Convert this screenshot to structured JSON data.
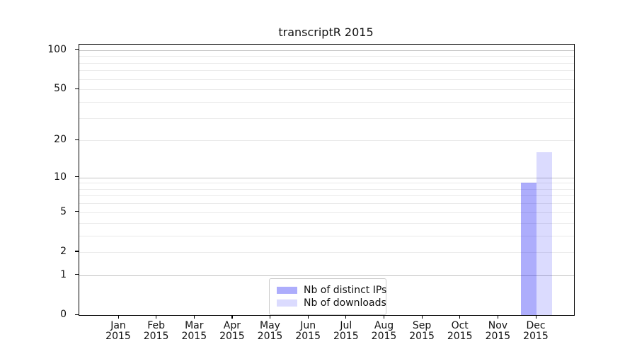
{
  "chart_data": {
    "type": "bar",
    "title": "transcriptR 2015",
    "x_categories": [
      "Jan",
      "Feb",
      "Mar",
      "Apr",
      "May",
      "Jun",
      "Jul",
      "Aug",
      "Sep",
      "Oct",
      "Nov",
      "Dec"
    ],
    "x_year": "2015",
    "series": [
      {
        "name": "Nb of distinct IPs",
        "color": "rgba(15, 15, 245, 0.34)",
        "values": [
          0,
          0,
          0,
          0,
          0,
          0,
          0,
          0,
          0,
          0,
          0,
          9
        ]
      },
      {
        "name": "Nb of downloads",
        "color": "rgba(15, 15, 245, 0.15)",
        "values": [
          0,
          0,
          0,
          0,
          0,
          0,
          0,
          0,
          0,
          0,
          0,
          16
        ]
      }
    ],
    "y_scale": "log10(1+y)",
    "y_ticks": [
      0,
      1,
      2,
      5,
      10,
      20,
      50,
      100
    ],
    "y_lim": [
      0,
      110
    ],
    "grid": {
      "major": [
        1,
        10,
        100
      ],
      "minor": [
        2,
        3,
        4,
        5,
        6,
        7,
        8,
        9,
        20,
        30,
        40,
        50,
        60,
        70,
        80,
        90
      ]
    },
    "legend_position": "lower center",
    "grid_on": true
  },
  "styles": {
    "grid_major_color": "#c3c3c3",
    "grid_minor_color": "#eaeaea",
    "axis_color": "#000000",
    "legend_border_color": "#cccccc",
    "background_color": "#ffffff",
    "bar_fill_distinct_ips_over_white": "#acacf8",
    "bar_fill_downloads_over_white": "#d9dbf8"
  }
}
